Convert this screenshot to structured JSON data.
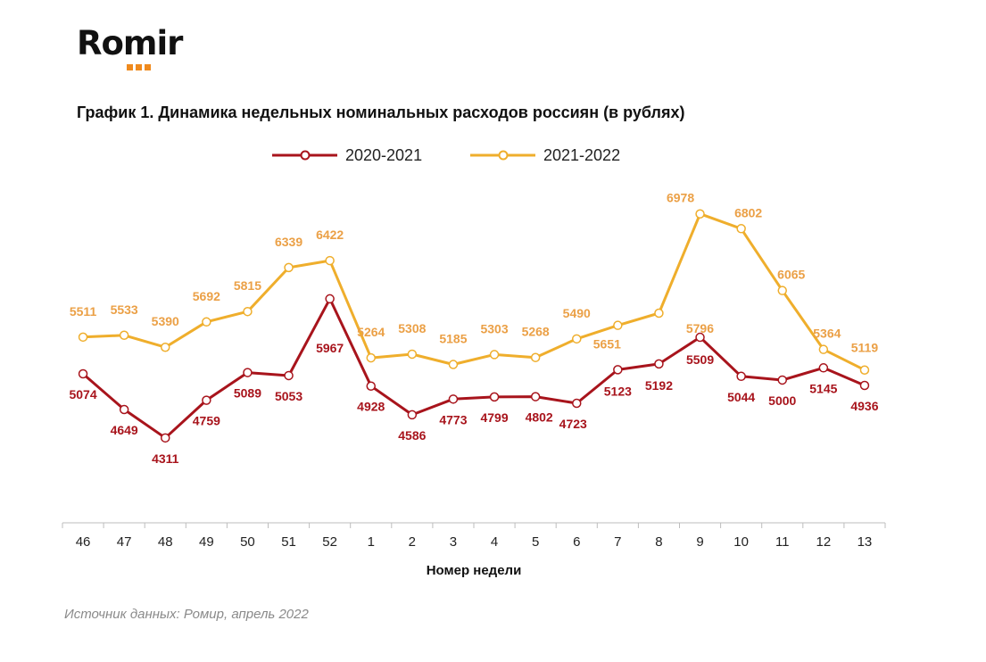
{
  "logo": {
    "text": "Romir"
  },
  "chart_data": {
    "type": "line",
    "title": "График 1. Динамика недельных номинальных расходов россиян (в рублях)",
    "xlabel": "Номер недели",
    "ylabel": "",
    "categories": [
      "46",
      "47",
      "48",
      "49",
      "50",
      "51",
      "52",
      "1",
      "2",
      "3",
      "4",
      "5",
      "6",
      "7",
      "8",
      "9",
      "10",
      "11",
      "12",
      "13"
    ],
    "ylim": [
      3300,
      7400
    ],
    "grid": false,
    "legend": "top-center",
    "series": [
      {
        "name": "2020-2021",
        "color": "#a8141c",
        "values": [
          5074,
          4649,
          4311,
          4759,
          5089,
          5053,
          5967,
          4928,
          4586,
          4773,
          4799,
          4802,
          4723,
          5123,
          5192,
          5509,
          5044,
          5000,
          5145,
          4936
        ],
        "labels": [
          "5074",
          "4649",
          "4311",
          "4759",
          "5089",
          "5053",
          "5967",
          "4928",
          "4586",
          "4773",
          "4799",
          "4802",
          "4723",
          "5123",
          "5192",
          "5509",
          "5044",
          "5000",
          "5145",
          "4936"
        ]
      },
      {
        "name": "2021-2022",
        "color": "#efae2c",
        "label_color": "#eba046",
        "values": [
          5511,
          5533,
          5390,
          5692,
          5815,
          6339,
          6422,
          5264,
          5308,
          5185,
          5303,
          5268,
          5490,
          5651,
          5796,
          6978,
          6802,
          6065,
          5364,
          5119
        ],
        "labels": [
          "5511",
          "5533",
          "5390",
          "5692",
          "5815",
          "6339",
          "6422",
          "5264",
          "5308",
          "5185",
          "5303",
          "5268",
          "5490",
          "5651",
          "5796",
          "6978",
          "6802",
          "6065",
          "5364",
          "5119"
        ]
      }
    ]
  },
  "source": "Источник данных: Ромир, апрель 2022"
}
